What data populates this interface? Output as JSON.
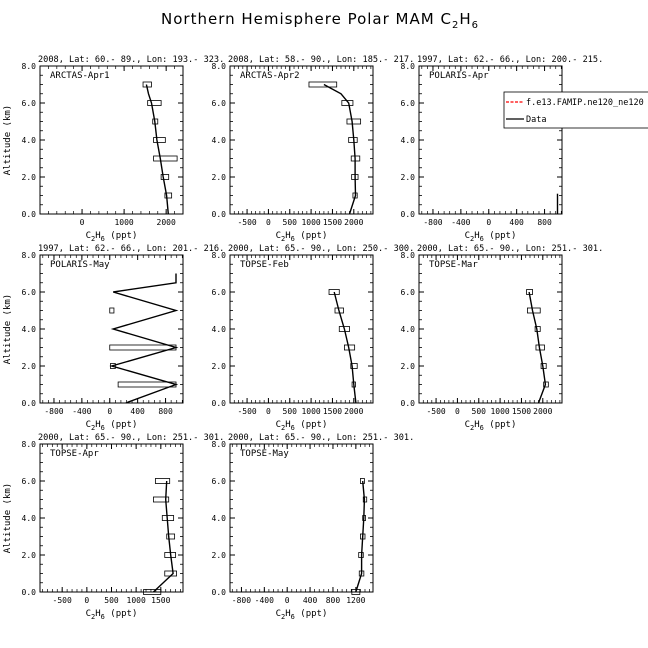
{
  "figure": {
    "title": "Northern Hemisphere Polar MAM C",
    "title_species_sub": "2",
    "title_species_mid": "H",
    "title_species_sub2": "6"
  },
  "chart_data": [
    {
      "type": "line",
      "header": "2008, Lat:  60.- 89., Lon: 193.- 323.",
      "label": "ARCTAS-Apr1",
      "xlabel": "C2H6 (ppt)",
      "ylabel": "Altitude (km)",
      "xlim": [
        -1000,
        2400
      ],
      "xticks": [
        0,
        1000,
        2000
      ],
      "ylim": [
        0,
        8
      ],
      "yticks": [
        0.0,
        2.0,
        4.0,
        6.0,
        8.0
      ],
      "series": [
        {
          "x": [
            2050,
            2010,
            1930,
            1860,
            1780,
            1730,
            1650,
            1580,
            1530
          ],
          "y": [
            0.0,
            1.0,
            2.0,
            3.0,
            4.0,
            5.0,
            6.0,
            6.5,
            7.0
          ]
        }
      ],
      "boxes": [
        {
          "y": 1.0,
          "x0": 1970,
          "x1": 2130
        },
        {
          "y": 2.0,
          "x0": 1880,
          "x1": 2060
        },
        {
          "y": 3.0,
          "x0": 1700,
          "x1": 2260
        },
        {
          "y": 4.0,
          "x0": 1700,
          "x1": 1980
        },
        {
          "y": 5.0,
          "x0": 1680,
          "x1": 1800
        },
        {
          "y": 6.0,
          "x0": 1560,
          "x1": 1880
        },
        {
          "y": 7.0,
          "x0": 1450,
          "x1": 1650
        }
      ]
    },
    {
      "type": "line",
      "header": "2008, Lat:  58.- 90., Lon: 185.- 217.",
      "label": "ARCTAS-Apr2",
      "xlabel": "C2H6 (ppt)",
      "ylabel": "",
      "xlim": [
        -900,
        2450
      ],
      "xticks": [
        -500,
        0,
        500,
        1000,
        1500,
        2000
      ],
      "ylim": [
        0,
        8
      ],
      "yticks": [
        0.0,
        2.0,
        4.0,
        6.0,
        8.0
      ],
      "series": [
        {
          "x": [
            1900,
            2040,
            2030,
            2030,
            2000,
            1960,
            1880,
            1700,
            1300
          ],
          "y": [
            0.0,
            1.0,
            2.0,
            3.0,
            4.0,
            5.0,
            6.0,
            6.5,
            7.0
          ]
        }
      ],
      "boxes": [
        {
          "y": 1.0,
          "x0": 1980,
          "x1": 2080
        },
        {
          "y": 2.0,
          "x0": 1950,
          "x1": 2100
        },
        {
          "y": 3.0,
          "x0": 1940,
          "x1": 2140
        },
        {
          "y": 4.0,
          "x0": 1880,
          "x1": 2080
        },
        {
          "y": 5.0,
          "x0": 1840,
          "x1": 2160
        },
        {
          "y": 6.0,
          "x0": 1720,
          "x1": 1980
        },
        {
          "y": 7.0,
          "x0": 950,
          "x1": 1600
        }
      ]
    },
    {
      "type": "line",
      "header": "1997, Lat:  62.- 66., Lon: 200.- 215.",
      "label": "POLARIS-Apr",
      "xlabel": "C2H6 (ppt)",
      "ylabel": "",
      "xlim": [
        -1000,
        1050
      ],
      "xticks": [
        -800,
        -400,
        0,
        400,
        800
      ],
      "ylim": [
        0,
        8
      ],
      "yticks": [
        0.0,
        2.0,
        4.0,
        6.0,
        8.0
      ],
      "series": [
        {
          "x": [
            985,
            985
          ],
          "y": [
            0.0,
            1.1
          ]
        }
      ],
      "boxes": [],
      "legend": {
        "position": "top-right",
        "entries": [
          {
            "label": "f.e13.FAMIP.ne120_ne120",
            "color": "#ff0000",
            "style": "dashed"
          },
          {
            "label": "Data",
            "color": "#000000",
            "style": "solid"
          }
        ]
      }
    },
    {
      "type": "line",
      "header": "1997, Lat:  62.- 66., Lon: 201.- 216.",
      "label": "POLARIS-May",
      "xlabel": "C2H6 (ppt)",
      "ylabel": "Altitude (km)",
      "xlim": [
        -1000,
        1050
      ],
      "xticks": [
        -800,
        -400,
        0,
        400,
        800
      ],
      "ylim": [
        0,
        8
      ],
      "yticks": [
        0.0,
        2.0,
        4.0,
        6.0,
        8.0
      ],
      "series": [
        {
          "x": [
            230,
            950,
            30,
            950,
            50,
            950,
            50,
            950,
            950
          ],
          "y": [
            0.0,
            1.0,
            2.0,
            3.0,
            4.0,
            5.0,
            6.0,
            6.5,
            7.0
          ]
        }
      ],
      "boxes": [
        {
          "y": 1.0,
          "x0": 120,
          "x1": 950
        },
        {
          "y": 2.0,
          "x0": 10,
          "x1": 80
        },
        {
          "y": 3.0,
          "x0": 0,
          "x1": 950
        },
        {
          "y": 5.0,
          "x0": 0,
          "x1": 60
        }
      ]
    },
    {
      "type": "line",
      "header": "2000, Lat:  65.- 90., Lon: 250.- 300.",
      "label": "TOPSE-Feb",
      "xlabel": "C2H6 (ppt)",
      "ylabel": "",
      "xlim": [
        -900,
        2450
      ],
      "xticks": [
        -500,
        0,
        500,
        1000,
        1500,
        2000
      ],
      "ylim": [
        0,
        8
      ],
      "yticks": [
        0.0,
        2.0,
        4.0,
        6.0,
        8.0
      ],
      "series": [
        {
          "x": [
            2050,
            2000,
            1960,
            1880,
            1780,
            1650,
            1540
          ],
          "y": [
            0.0,
            1.0,
            2.0,
            3.0,
            4.0,
            5.0,
            6.0
          ]
        }
      ],
      "boxes": [
        {
          "y": 1.0,
          "x0": 1960,
          "x1": 2040
        },
        {
          "y": 2.0,
          "x0": 1930,
          "x1": 2080
        },
        {
          "y": 3.0,
          "x0": 1780,
          "x1": 2020
        },
        {
          "y": 4.0,
          "x0": 1660,
          "x1": 1900
        },
        {
          "y": 5.0,
          "x0": 1560,
          "x1": 1760
        },
        {
          "y": 6.0,
          "x0": 1420,
          "x1": 1660
        }
      ]
    },
    {
      "type": "line",
      "header": "2000, Lat:  65.- 90., Lon: 251.- 301.",
      "label": "TOPSE-Mar",
      "xlabel": "C2H6 (ppt)",
      "ylabel": "",
      "xlim": [
        -900,
        2450
      ],
      "xticks": [
        -500,
        0,
        500,
        1000,
        1500,
        2000
      ],
      "ylim": [
        0,
        8
      ],
      "yticks": [
        0.0,
        2.0,
        4.0,
        6.0,
        8.0
      ],
      "series": [
        {
          "x": [
            1900,
            2060,
            2000,
            1920,
            1860,
            1760,
            1680
          ],
          "y": [
            0.0,
            1.0,
            2.0,
            3.0,
            4.0,
            5.0,
            6.0
          ]
        }
      ],
      "boxes": [
        {
          "y": 1.0,
          "x0": 2020,
          "x1": 2130
        },
        {
          "y": 2.0,
          "x0": 1960,
          "x1": 2080
        },
        {
          "y": 3.0,
          "x0": 1840,
          "x1": 2040
        },
        {
          "y": 4.0,
          "x0": 1820,
          "x1": 1940
        },
        {
          "y": 5.0,
          "x0": 1640,
          "x1": 1940
        },
        {
          "y": 6.0,
          "x0": 1620,
          "x1": 1760
        }
      ]
    },
    {
      "type": "line",
      "header": "2000, Lat:  65.- 90., Lon: 251.- 301.",
      "label": "TOPSE-Apr",
      "xlabel": "C2H6 (ppt)",
      "ylabel": "Altitude (km)",
      "xlim": [
        -950,
        1950
      ],
      "xticks": [
        -500,
        0,
        500,
        1000,
        1500
      ],
      "ylim": [
        0,
        8
      ],
      "yticks": [
        0.0,
        2.0,
        4.0,
        6.0,
        8.0
      ],
      "series": [
        {
          "x": [
            1350,
            1750,
            1700,
            1660,
            1630,
            1600,
            1620
          ],
          "y": [
            0.0,
            1.0,
            2.0,
            3.0,
            4.0,
            5.0,
            6.0
          ]
        }
      ],
      "boxes": [
        {
          "y": 0.0,
          "x0": 1150,
          "x1": 1500
        },
        {
          "y": 1.0,
          "x0": 1580,
          "x1": 1820
        },
        {
          "y": 2.0,
          "x0": 1580,
          "x1": 1800
        },
        {
          "y": 3.0,
          "x0": 1620,
          "x1": 1780
        },
        {
          "y": 4.0,
          "x0": 1530,
          "x1": 1760
        },
        {
          "y": 5.0,
          "x0": 1350,
          "x1": 1660
        },
        {
          "y": 6.0,
          "x0": 1390,
          "x1": 1680
        }
      ]
    },
    {
      "type": "line",
      "header": "2000, Lat:  65.- 90., Lon: 251.- 301.",
      "label": "TOPSE-May",
      "xlabel": "C2H6 (ppt)",
      "ylabel": "",
      "xlim": [
        -1000,
        1500
      ],
      "xticks": [
        -800,
        -400,
        0,
        400,
        800,
        1200
      ],
      "ylim": [
        0,
        8
      ],
      "yticks": [
        0.0,
        2.0,
        4.0,
        6.0,
        8.0
      ],
      "series": [
        {
          "x": [
            1200,
            1300,
            1300,
            1320,
            1340,
            1350,
            1320
          ],
          "y": [
            0.0,
            1.0,
            2.0,
            3.0,
            4.0,
            5.0,
            6.0
          ]
        }
      ],
      "boxes": [
        {
          "y": 0.0,
          "x0": 1130,
          "x1": 1270
        },
        {
          "y": 1.0,
          "x0": 1260,
          "x1": 1340
        },
        {
          "y": 2.0,
          "x0": 1250,
          "x1": 1330
        },
        {
          "y": 3.0,
          "x0": 1280,
          "x1": 1360
        },
        {
          "y": 4.0,
          "x0": 1320,
          "x1": 1370
        },
        {
          "y": 5.0,
          "x0": 1330,
          "x1": 1390
        },
        {
          "y": 6.0,
          "x0": 1280,
          "x1": 1350
        }
      ]
    }
  ]
}
